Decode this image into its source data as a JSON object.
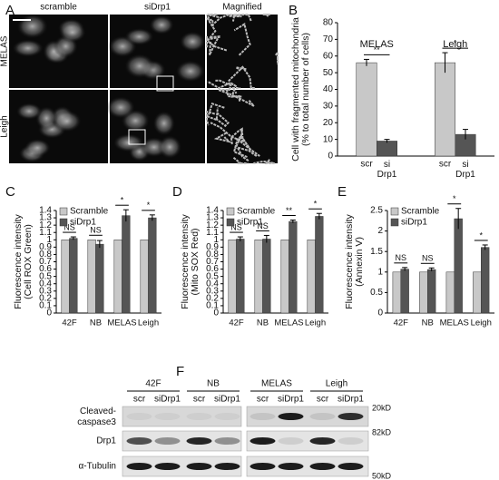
{
  "panel_a": {
    "label": "A",
    "columns": [
      "scramble",
      "siDrp1",
      "Magnified"
    ],
    "rows": [
      "MELAS",
      "Leigh"
    ]
  },
  "panel_f": {
    "label": "F",
    "groups": [
      {
        "name": "42F",
        "lanes": [
          "scr",
          "siDrp1"
        ]
      },
      {
        "name": "NB",
        "lanes": [
          "scr",
          "siDrp1"
        ]
      },
      {
        "name": "MELAS",
        "lanes": [
          "scr",
          "siDrp1"
        ]
      },
      {
        "name": "Leigh",
        "lanes": [
          "scr",
          "siDrp1"
        ]
      }
    ],
    "rows": [
      "Cleaved-caspase3",
      "Drp1",
      "α-Tubulin"
    ],
    "markers": [
      "20kD",
      "82kD",
      "50kD"
    ]
  },
  "chart_data": [
    {
      "type": "bar",
      "panel": "B",
      "ylabel": [
        "Cell with fragmented mitochondria",
        "(% to total number of cells)"
      ],
      "categories": [
        "MELAS",
        "Leigh"
      ],
      "series": [
        {
          "name": "scr",
          "color": "#c8c8c8",
          "values": [
            56,
            56
          ],
          "errors": [
            2,
            6
          ]
        },
        {
          "name": "si Drp1",
          "color": "#555555",
          "values": [
            9,
            13
          ],
          "errors": [
            1,
            3
          ]
        }
      ],
      "annotations": [
        "**",
        "*"
      ],
      "ylim": [
        0,
        80
      ],
      "yticks": [
        0,
        10,
        20,
        30,
        40,
        50,
        60,
        70,
        80
      ],
      "legend": false
    },
    {
      "type": "bar",
      "panel": "C",
      "ylabel": [
        "Fluorescence intensity",
        "(Cell ROX Green)"
      ],
      "categories": [
        "42F",
        "NB",
        "MELAS",
        "Leigh"
      ],
      "series": [
        {
          "name": "Scramble",
          "color": "#c8c8c8",
          "values": [
            1,
            1,
            1,
            1
          ]
        },
        {
          "name": "siDrp1",
          "color": "#555555",
          "values": [
            1.02,
            0.94,
            1.33,
            1.3
          ],
          "errors": [
            0.02,
            0.05,
            0.08,
            0.04
          ]
        }
      ],
      "annotations": [
        "NS",
        "NS",
        "*",
        "*"
      ],
      "ylim": [
        0,
        1.4
      ],
      "yticks": [
        0,
        0.1,
        0.2,
        0.3,
        0.4,
        0.5,
        0.6,
        0.7,
        0.8,
        0.9,
        1,
        1.1,
        1.2,
        1.3,
        1.4
      ],
      "legend": true
    },
    {
      "type": "bar",
      "panel": "D",
      "ylabel": [
        "Fluorescence intensity",
        "(Mito SOX Red)"
      ],
      "categories": [
        "42F",
        "NB",
        "MELAS",
        "Leigh"
      ],
      "series": [
        {
          "name": "Scramble",
          "color": "#c8c8c8",
          "values": [
            1,
            1,
            1,
            1
          ]
        },
        {
          "name": "siDrp1",
          "color": "#555555",
          "values": [
            1.01,
            1.01,
            1.25,
            1.32
          ],
          "errors": [
            0.03,
            0.05,
            0.02,
            0.04
          ]
        }
      ],
      "annotations": [
        "NS",
        "NS",
        "**",
        "*"
      ],
      "ylim": [
        0,
        1.4
      ],
      "yticks": [
        0,
        0.1,
        0.2,
        0.3,
        0.4,
        0.5,
        0.6,
        0.7,
        0.8,
        0.9,
        1,
        1.1,
        1.2,
        1.3,
        1.4
      ],
      "legend": true
    },
    {
      "type": "bar",
      "panel": "E",
      "ylabel": [
        "Fluorescence intensity",
        "(Annexin V)"
      ],
      "categories": [
        "42F",
        "NB",
        "MELAS",
        "Leigh"
      ],
      "series": [
        {
          "name": "Scramble",
          "color": "#c8c8c8",
          "values": [
            1,
            1,
            1,
            1
          ]
        },
        {
          "name": "siDrp1",
          "color": "#555555",
          "values": [
            1.07,
            1.06,
            2.3,
            1.6
          ],
          "errors": [
            0.04,
            0.04,
            0.25,
            0.06
          ]
        }
      ],
      "annotations": [
        "NS",
        "NS",
        "*",
        "*"
      ],
      "ylim": [
        0,
        2.5
      ],
      "yticks": [
        0,
        0.5,
        1,
        1.5,
        2,
        2.5
      ],
      "legend": true
    }
  ]
}
